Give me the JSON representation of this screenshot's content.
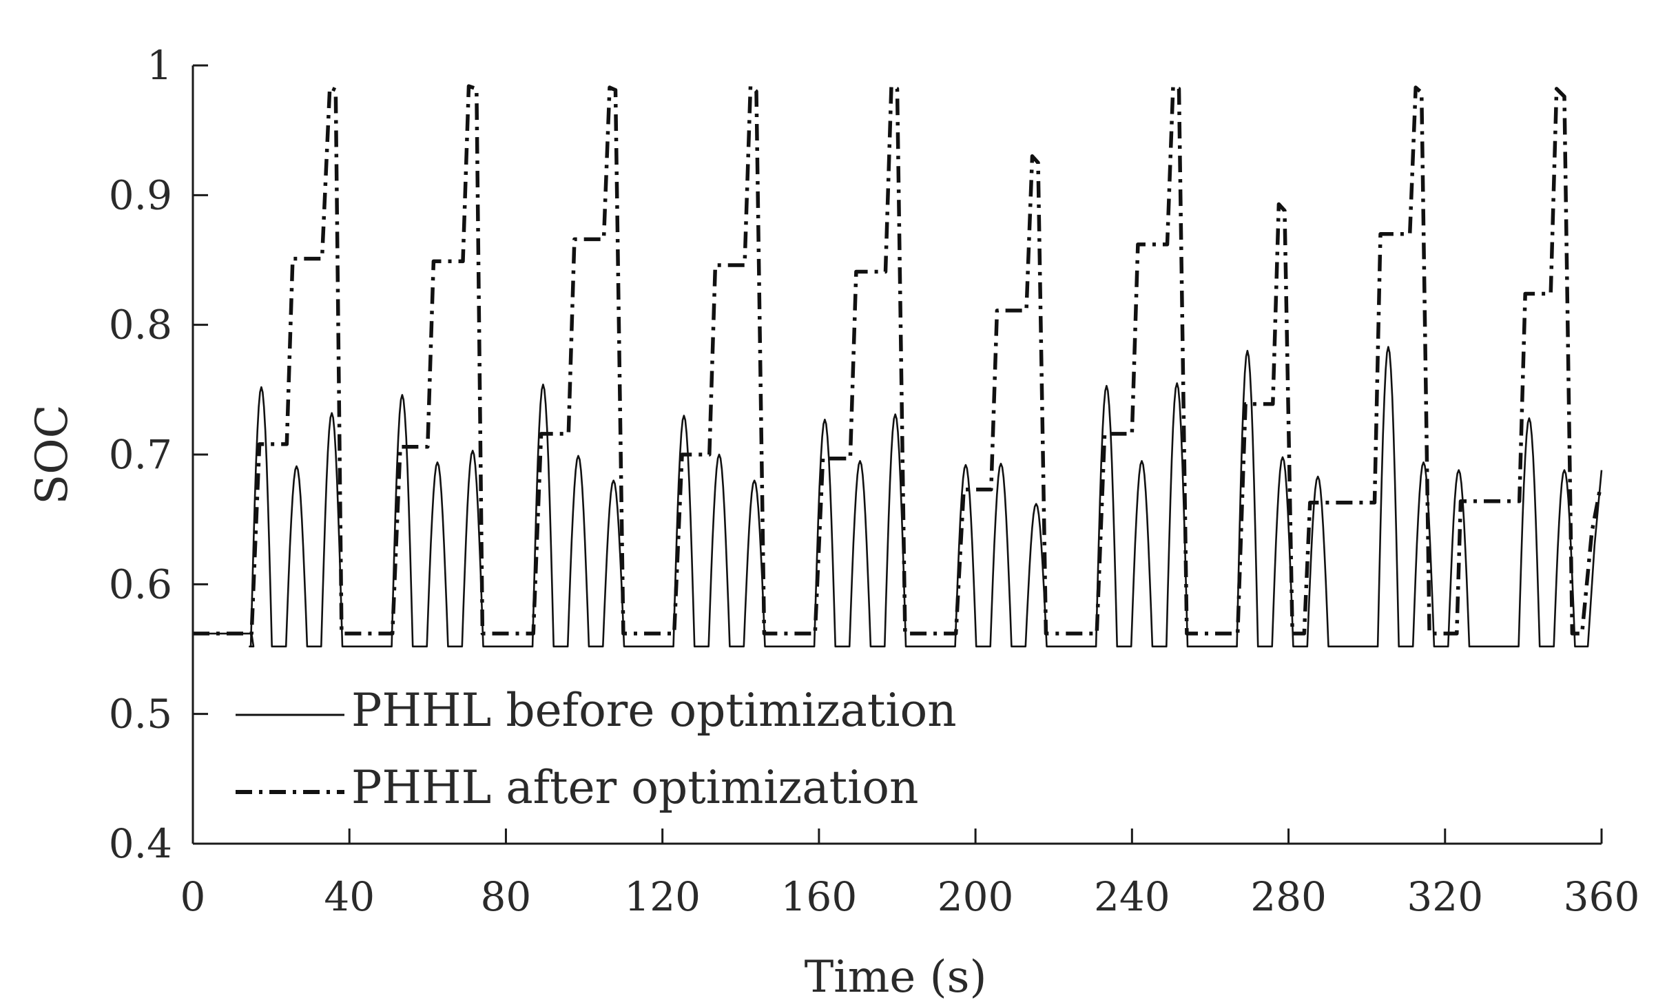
{
  "chart_data": {
    "type": "line",
    "title": "",
    "xlabel": "Time (s)",
    "ylabel": "SOC",
    "xlim": [
      0,
      360
    ],
    "ylim": [
      0.4,
      1.0
    ],
    "xticks": [
      0,
      40,
      80,
      120,
      160,
      200,
      240,
      280,
      320,
      360
    ],
    "yticks": [
      0.4,
      0.5,
      0.6,
      0.7,
      0.8,
      0.9,
      1.0
    ],
    "xtick_labels": [
      "0",
      "40",
      "80",
      "120",
      "160",
      "200",
      "240",
      "280",
      "320",
      "360"
    ],
    "ytick_labels": [
      "0.4",
      "0.5",
      "0.6",
      "0.7",
      "0.8",
      "0.9",
      "1"
    ],
    "grid": false,
    "legend_position": "lower-left",
    "series": [
      {
        "name": "PHHL before optimization",
        "style": "solid",
        "base": 0.552,
        "start_value": 0.562,
        "start_until": 15,
        "end_value": 0.688,
        "pulses": [
          {
            "center": 17.5,
            "peak": 0.752
          },
          {
            "center": 26.5,
            "peak": 0.691
          },
          {
            "center": 35.5,
            "peak": 0.732
          },
          {
            "center": 53.5,
            "peak": 0.746
          },
          {
            "center": 62.5,
            "peak": 0.694
          },
          {
            "center": 71.5,
            "peak": 0.703
          },
          {
            "center": 89.5,
            "peak": 0.754
          },
          {
            "center": 98.5,
            "peak": 0.699
          },
          {
            "center": 107.5,
            "peak": 0.68
          },
          {
            "center": 125.5,
            "peak": 0.73
          },
          {
            "center": 134.5,
            "peak": 0.7
          },
          {
            "center": 143.5,
            "peak": 0.68
          },
          {
            "center": 161.5,
            "peak": 0.727
          },
          {
            "center": 170.5,
            "peak": 0.695
          },
          {
            "center": 179.5,
            "peak": 0.731
          },
          {
            "center": 197.5,
            "peak": 0.692
          },
          {
            "center": 206.5,
            "peak": 0.693
          },
          {
            "center": 215.5,
            "peak": 0.662
          },
          {
            "center": 233.5,
            "peak": 0.753
          },
          {
            "center": 242.5,
            "peak": 0.695
          },
          {
            "center": 251.5,
            "peak": 0.755
          },
          {
            "center": 269.5,
            "peak": 0.78
          },
          {
            "center": 278.5,
            "peak": 0.698
          },
          {
            "center": 287.5,
            "peak": 0.683
          },
          {
            "center": 305.5,
            "peak": 0.783
          },
          {
            "center": 314.5,
            "peak": 0.694
          },
          {
            "center": 323.5,
            "peak": 0.688
          },
          {
            "center": 341.5,
            "peak": 0.728
          },
          {
            "center": 350.5,
            "peak": 0.688
          }
        ]
      },
      {
        "name": "PHHL after optimization",
        "style": "dash-dot",
        "points": [
          [
            0,
            0.562
          ],
          [
            15,
            0.562
          ],
          [
            17,
            0.708
          ],
          [
            24,
            0.708
          ],
          [
            25.5,
            0.851
          ],
          [
            33,
            0.851
          ],
          [
            35,
            0.983
          ],
          [
            36.5,
            0.981
          ],
          [
            38,
            0.562
          ],
          [
            50,
            0.562
          ],
          [
            51,
            0.562
          ],
          [
            53,
            0.706
          ],
          [
            60,
            0.706
          ],
          [
            61.5,
            0.849
          ],
          [
            69,
            0.849
          ],
          [
            70.5,
            0.984
          ],
          [
            72.5,
            0.982
          ],
          [
            74,
            0.562
          ],
          [
            86,
            0.562
          ],
          [
            87,
            0.562
          ],
          [
            89,
            0.716
          ],
          [
            96,
            0.716
          ],
          [
            97.5,
            0.866
          ],
          [
            105,
            0.866
          ],
          [
            106.5,
            0.983
          ],
          [
            108,
            0.981
          ],
          [
            110,
            0.562
          ],
          [
            122,
            0.562
          ],
          [
            123,
            0.562
          ],
          [
            125,
            0.7
          ],
          [
            132,
            0.7
          ],
          [
            133.5,
            0.846
          ],
          [
            141,
            0.846
          ],
          [
            142.5,
            0.984
          ],
          [
            144,
            0.98
          ],
          [
            146,
            0.562
          ],
          [
            158,
            0.562
          ],
          [
            159,
            0.562
          ],
          [
            161,
            0.697
          ],
          [
            168,
            0.697
          ],
          [
            169.5,
            0.841
          ],
          [
            177,
            0.841
          ],
          [
            178.5,
            0.984
          ],
          [
            180,
            0.982
          ],
          [
            182,
            0.562
          ],
          [
            194,
            0.562
          ],
          [
            195,
            0.562
          ],
          [
            197,
            0.673
          ],
          [
            204,
            0.673
          ],
          [
            205.5,
            0.811
          ],
          [
            213,
            0.811
          ],
          [
            214.5,
            0.93
          ],
          [
            216,
            0.925
          ],
          [
            218,
            0.562
          ],
          [
            230,
            0.562
          ],
          [
            231,
            0.562
          ],
          [
            233,
            0.716
          ],
          [
            240,
            0.716
          ],
          [
            241.5,
            0.862
          ],
          [
            249,
            0.862
          ],
          [
            250.5,
            0.984
          ],
          [
            252,
            0.982
          ],
          [
            254,
            0.562
          ],
          [
            266,
            0.562
          ],
          [
            267,
            0.562
          ],
          [
            269,
            0.739
          ],
          [
            276,
            0.739
          ],
          [
            277.5,
            0.893
          ],
          [
            279,
            0.888
          ],
          [
            281,
            0.562
          ],
          [
            284,
            0.562
          ],
          [
            285.5,
            0.663
          ],
          [
            302,
            0.663
          ],
          [
            303.5,
            0.87
          ],
          [
            311,
            0.87
          ],
          [
            312.5,
            0.983
          ],
          [
            314,
            0.979
          ],
          [
            316,
            0.562
          ],
          [
            323,
            0.562
          ],
          [
            324,
            0.664
          ],
          [
            339,
            0.664
          ],
          [
            340.5,
            0.824
          ],
          [
            347,
            0.824
          ],
          [
            348.5,
            0.982
          ],
          [
            350.5,
            0.976
          ],
          [
            352.5,
            0.562
          ],
          [
            355,
            0.562
          ],
          [
            357.5,
            0.64
          ],
          [
            359.5,
            0.672
          ]
        ]
      }
    ]
  }
}
